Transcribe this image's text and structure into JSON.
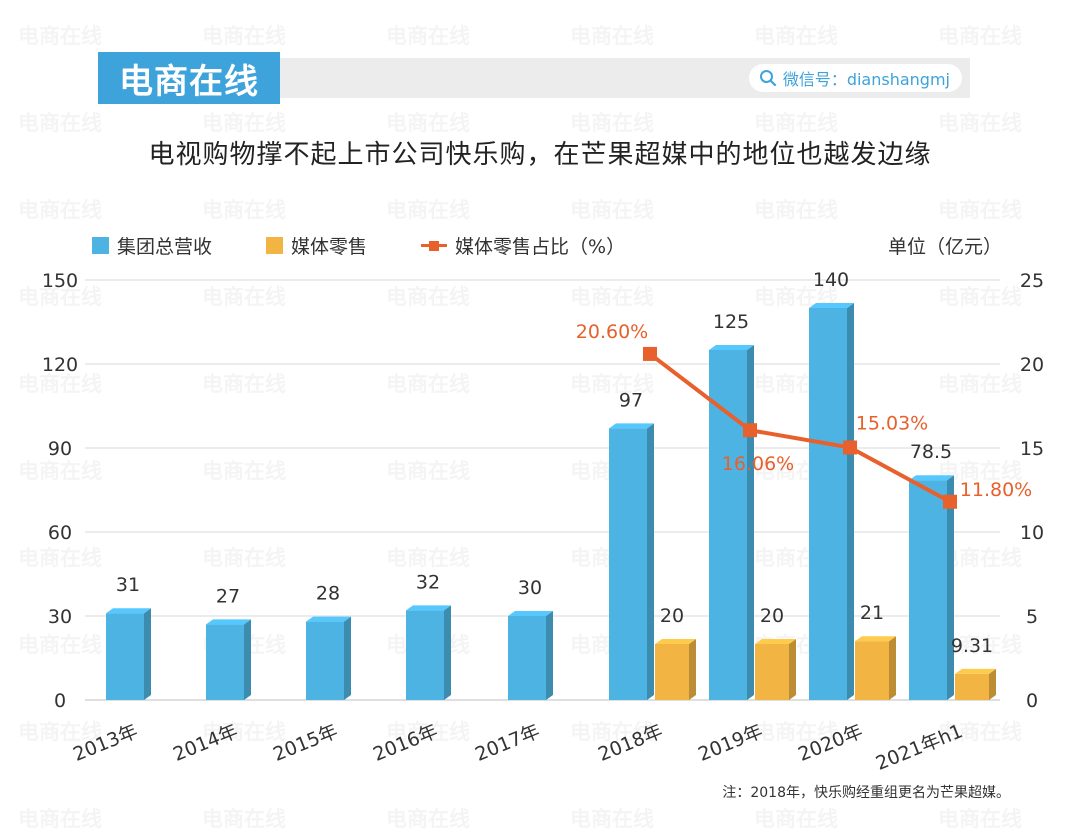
{
  "brand": "电商在线",
  "wechat": "微信号：dianshangmj",
  "watermark_text": "电商在线",
  "title": "电视购物撑不起上市公司快乐购，在芒果超媒中的地位也越发边缘",
  "unit": "单位（亿元）",
  "note": "注：2018年，快乐购经重组更名为芒果超媒。",
  "colors": {
    "accent": "#3ea2db",
    "bar_total": "#4db3e2",
    "bar_retail": "#f2b544",
    "line": "#e8602c"
  },
  "chart_data": {
    "type": "bar",
    "categories": [
      "2013年",
      "2014年",
      "2015年",
      "2016年",
      "2017年",
      "2018年",
      "2019年",
      "2020年",
      "2021年h1"
    ],
    "series": [
      {
        "name": "集团总营收",
        "type": "bar",
        "axis": "left",
        "values": [
          31,
          27,
          28,
          32,
          30,
          97,
          125,
          140,
          78.5
        ],
        "labels": [
          "31",
          "27",
          "28",
          "32",
          "30",
          "97",
          "125",
          "140",
          "78.5"
        ]
      },
      {
        "name": "媒体零售",
        "type": "bar",
        "axis": "left",
        "values": [
          null,
          null,
          null,
          null,
          null,
          20,
          20,
          21,
          9.31
        ],
        "labels": [
          "",
          "",
          "",
          "",
          "",
          "20",
          "20",
          "21",
          "9.31"
        ]
      },
      {
        "name": "媒体零售占比（%）",
        "type": "line",
        "axis": "right",
        "values": [
          null,
          null,
          null,
          null,
          null,
          20.6,
          16.06,
          15.03,
          11.8
        ],
        "labels": [
          "",
          "",
          "",
          "",
          "",
          "20.60%",
          "16.06%",
          "15.03%",
          "11.80%"
        ]
      }
    ],
    "ylim": [
      0,
      150
    ],
    "yticks": [
      "0",
      "30",
      "60",
      "90",
      "120",
      "150"
    ],
    "y2lim": [
      0,
      25
    ],
    "y2ticks": [
      "0",
      "5",
      "10",
      "15",
      "20",
      "25"
    ],
    "grid": true,
    "legend": "top-left"
  }
}
